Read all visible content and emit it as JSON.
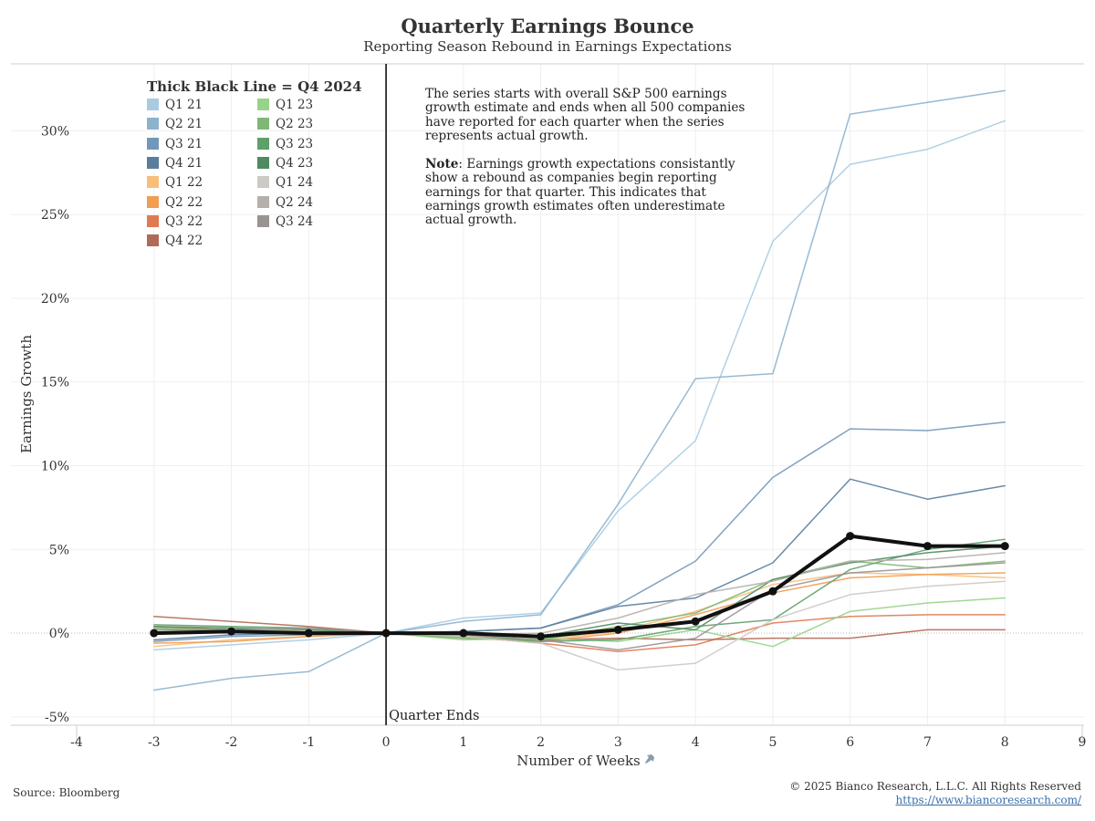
{
  "header": {
    "title": "Quarterly Earnings Bounce",
    "subtitle": "Reporting Season Rebound in Earnings Expectations"
  },
  "legend": {
    "title": "Thick Black Line = Q4 2024"
  },
  "annotation": {
    "note_text": "The series starts with overall S&P 500 earnings growth estimate and ends when all 500 companies have reported for each quarter when the series represents actual growth.",
    "note_label": "Note",
    "note_body": ": Earnings growth expectations consistantly show a rebound as companies begin reporting earnings for that quarter. This indicates that earnings growth estimates often underestimate actual growth.",
    "quarter_end_label": "Quarter Ends"
  },
  "footer": {
    "source": "Source: Bloomberg",
    "copyright": "© 2025 Bianco Research, L.L.C. All Rights Reserved",
    "link": "https://www.biancoresearch.com/"
  },
  "chart_data": {
    "type": "line",
    "xlabel": "Number of Weeks",
    "ylabel": "Earnings Growth",
    "xlim": [
      -4,
      9
    ],
    "ylim": [
      -5.5,
      34
    ],
    "xticks": [
      -4,
      -3,
      -2,
      -1,
      0,
      1,
      2,
      3,
      4,
      5,
      6,
      7,
      8,
      9
    ],
    "xtick_labels": [
      "-4",
      "-3",
      "-2",
      "-1",
      "0",
      "1",
      "2",
      "3",
      "4",
      "5",
      "6",
      "7",
      "8",
      "9"
    ],
    "yticks": [
      -5,
      0,
      5,
      10,
      15,
      20,
      25,
      30
    ],
    "ytick_labels": [
      "-5%",
      "0%",
      "5%",
      "10%",
      "15%",
      "20%",
      "25%",
      "30%"
    ],
    "vline_x": 0,
    "grid": true,
    "legend_position": "top-left",
    "x": [
      -3,
      -2,
      -1,
      0,
      1,
      2,
      3,
      4,
      5,
      6,
      7,
      8
    ],
    "series": [
      {
        "name": "Q1 21",
        "color": "#a9cbe2",
        "width": 1.5,
        "values": [
          -1.0,
          -0.7,
          -0.4,
          0.0,
          0.9,
          1.2,
          7.3,
          11.5,
          23.4,
          28.0,
          28.9,
          30.6
        ]
      },
      {
        "name": "Q2 21",
        "color": "#8db2ce",
        "width": 1.5,
        "values": [
          -3.4,
          -2.7,
          -2.3,
          0.0,
          0.7,
          1.1,
          7.7,
          15.2,
          15.5,
          31.0,
          31.7,
          32.4
        ]
      },
      {
        "name": "Q3 21",
        "color": "#7397ba",
        "width": 1.5,
        "values": [
          -0.5,
          -0.2,
          -0.1,
          0.0,
          0.1,
          0.3,
          1.7,
          4.3,
          9.3,
          12.2,
          12.1,
          12.6
        ]
      },
      {
        "name": "Q4 21",
        "color": "#5a7d9c",
        "width": 1.5,
        "values": [
          -0.4,
          -0.1,
          0.0,
          0.0,
          0.1,
          0.3,
          1.6,
          2.1,
          4.2,
          9.2,
          8.0,
          8.8
        ]
      },
      {
        "name": "Q1 22",
        "color": "#f7be7a",
        "width": 1.5,
        "values": [
          -0.8,
          -0.4,
          -0.2,
          0.0,
          -0.2,
          -0.4,
          0.1,
          1.3,
          2.9,
          3.6,
          3.5,
          3.3
        ]
      },
      {
        "name": "Q2 22",
        "color": "#f19d52",
        "width": 1.5,
        "values": [
          -0.6,
          -0.5,
          -0.2,
          0.0,
          -0.3,
          -0.5,
          0.0,
          1.1,
          2.4,
          3.3,
          3.5,
          3.6
        ]
      },
      {
        "name": "Q3 22",
        "color": "#e07a52",
        "width": 1.5,
        "values": [
          0.4,
          0.2,
          0.1,
          0.0,
          -0.2,
          -0.6,
          -1.1,
          -0.7,
          0.6,
          1.0,
          1.1,
          1.1
        ]
      },
      {
        "name": "Q4 22",
        "color": "#b06a58",
        "width": 1.5,
        "values": [
          1.0,
          0.7,
          0.4,
          0.0,
          -0.1,
          -0.4,
          -0.3,
          -0.4,
          -0.3,
          -0.3,
          0.2,
          0.2
        ]
      },
      {
        "name": "Q1 23",
        "color": "#97d38a",
        "width": 1.5,
        "values": [
          0.2,
          0.1,
          0.0,
          0.0,
          -0.4,
          -0.3,
          -0.5,
          0.2,
          -0.8,
          1.3,
          1.8,
          2.1
        ]
      },
      {
        "name": "Q2 23",
        "color": "#7fb876",
        "width": 1.5,
        "values": [
          0.3,
          0.2,
          0.1,
          0.0,
          -0.3,
          -0.4,
          0.4,
          1.2,
          3.2,
          4.3,
          3.9,
          4.3
        ]
      },
      {
        "name": "Q3 23",
        "color": "#5fa06a",
        "width": 1.5,
        "values": [
          0.5,
          0.4,
          0.3,
          0.0,
          -0.2,
          -0.5,
          -0.4,
          0.4,
          0.8,
          3.8,
          5.0,
          5.6
        ]
      },
      {
        "name": "Q4 23",
        "color": "#4f8a63",
        "width": 1.5,
        "values": [
          0.4,
          0.3,
          0.2,
          0.0,
          -0.1,
          -0.2,
          0.6,
          0.2,
          3.2,
          4.2,
          4.8,
          5.2
        ]
      },
      {
        "name": "Q1 24",
        "color": "#cdc9c5",
        "width": 1.5,
        "values": [
          0.1,
          0.0,
          0.0,
          0.0,
          -0.2,
          -0.6,
          -2.2,
          -1.8,
          0.8,
          2.3,
          2.8,
          3.1
        ]
      },
      {
        "name": "Q2 24",
        "color": "#b5b0ab",
        "width": 1.5,
        "values": [
          0.0,
          0.1,
          0.1,
          0.0,
          -0.1,
          0.0,
          0.9,
          2.3,
          3.1,
          4.3,
          4.4,
          4.8
        ]
      },
      {
        "name": "Q3 24",
        "color": "#999392",
        "width": 1.5,
        "values": [
          0.2,
          0.2,
          0.3,
          0.0,
          -0.1,
          -0.4,
          -1.0,
          -0.3,
          2.6,
          3.6,
          3.9,
          4.2
        ]
      },
      {
        "name": "Q4 2024",
        "color": "#111111",
        "width": 4,
        "markers": true,
        "values": [
          0.0,
          0.1,
          0.0,
          0.0,
          0.0,
          -0.2,
          0.2,
          0.7,
          2.5,
          5.8,
          5.2,
          5.2
        ]
      }
    ]
  }
}
